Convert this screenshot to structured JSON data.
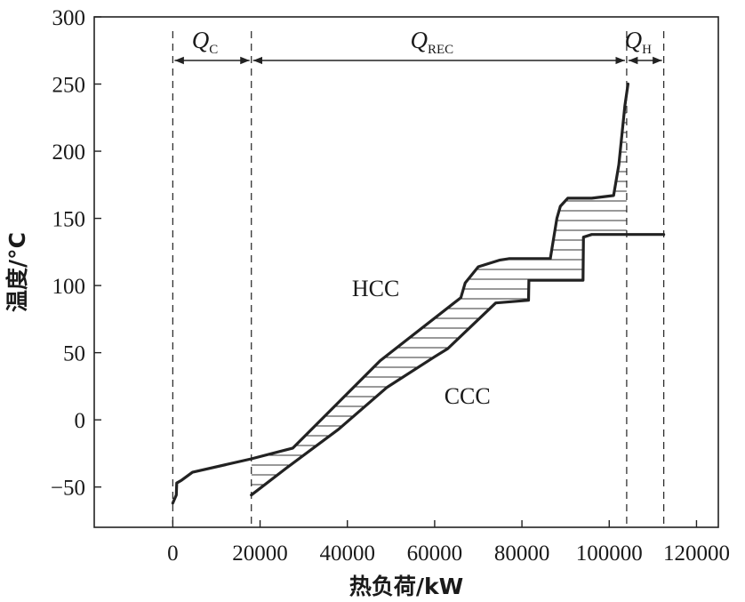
{
  "chart_data": {
    "type": "line",
    "xlabel": "热负荷/kW",
    "ylabel": "温度/°C",
    "xlim": [
      -18000,
      125000
    ],
    "ylim": [
      -80,
      300
    ],
    "x_ticks": [
      0,
      20000,
      40000,
      60000,
      80000,
      100000,
      120000
    ],
    "y_ticks": [
      -50,
      0,
      50,
      100,
      150,
      200,
      250,
      300
    ],
    "grid": false,
    "series": [
      {
        "name": "HCC",
        "color": "#222222",
        "points": [
          [
            0,
            -62
          ],
          [
            400,
            -59
          ],
          [
            800,
            -56
          ],
          [
            900,
            -47
          ],
          [
            2000,
            -45
          ],
          [
            4500,
            -39
          ],
          [
            18000,
            -29
          ],
          [
            27500,
            -21
          ],
          [
            47500,
            44
          ],
          [
            66000,
            91
          ],
          [
            67000,
            102
          ],
          [
            70000,
            114
          ],
          [
            75000,
            119
          ],
          [
            77000,
            120
          ],
          [
            86500,
            120
          ],
          [
            88000,
            150
          ],
          [
            88800,
            159
          ],
          [
            90500,
            165
          ],
          [
            96000,
            165
          ],
          [
            101000,
            167
          ],
          [
            102200,
            190
          ],
          [
            103600,
            234
          ],
          [
            104300,
            250
          ]
        ]
      },
      {
        "name": "CCC",
        "color": "#222222",
        "points": [
          [
            18000,
            -56
          ],
          [
            26000,
            -36
          ],
          [
            38000,
            -7
          ],
          [
            49000,
            24
          ],
          [
            60000,
            47
          ],
          [
            63000,
            53
          ],
          [
            74000,
            87
          ],
          [
            81500,
            89
          ],
          [
            81600,
            104
          ],
          [
            94000,
            104
          ],
          [
            94100,
            136
          ],
          [
            96000,
            138
          ],
          [
            112500,
            138
          ]
        ]
      }
    ],
    "vlines": [
      0,
      18000,
      104000,
      112500
    ],
    "annotations": [
      {
        "label": "Q",
        "sub": "C",
        "from": 0,
        "to": 18000
      },
      {
        "label": "Q",
        "sub": "REC",
        "from": 18000,
        "to": 104000
      },
      {
        "label": "Q",
        "sub": "H",
        "from": 104000,
        "to": 112500
      }
    ],
    "curve_labels": [
      {
        "text": "HCC",
        "x": 46500,
        "y": 92
      },
      {
        "text": "CCC",
        "x": 67500,
        "y": 12
      }
    ]
  }
}
